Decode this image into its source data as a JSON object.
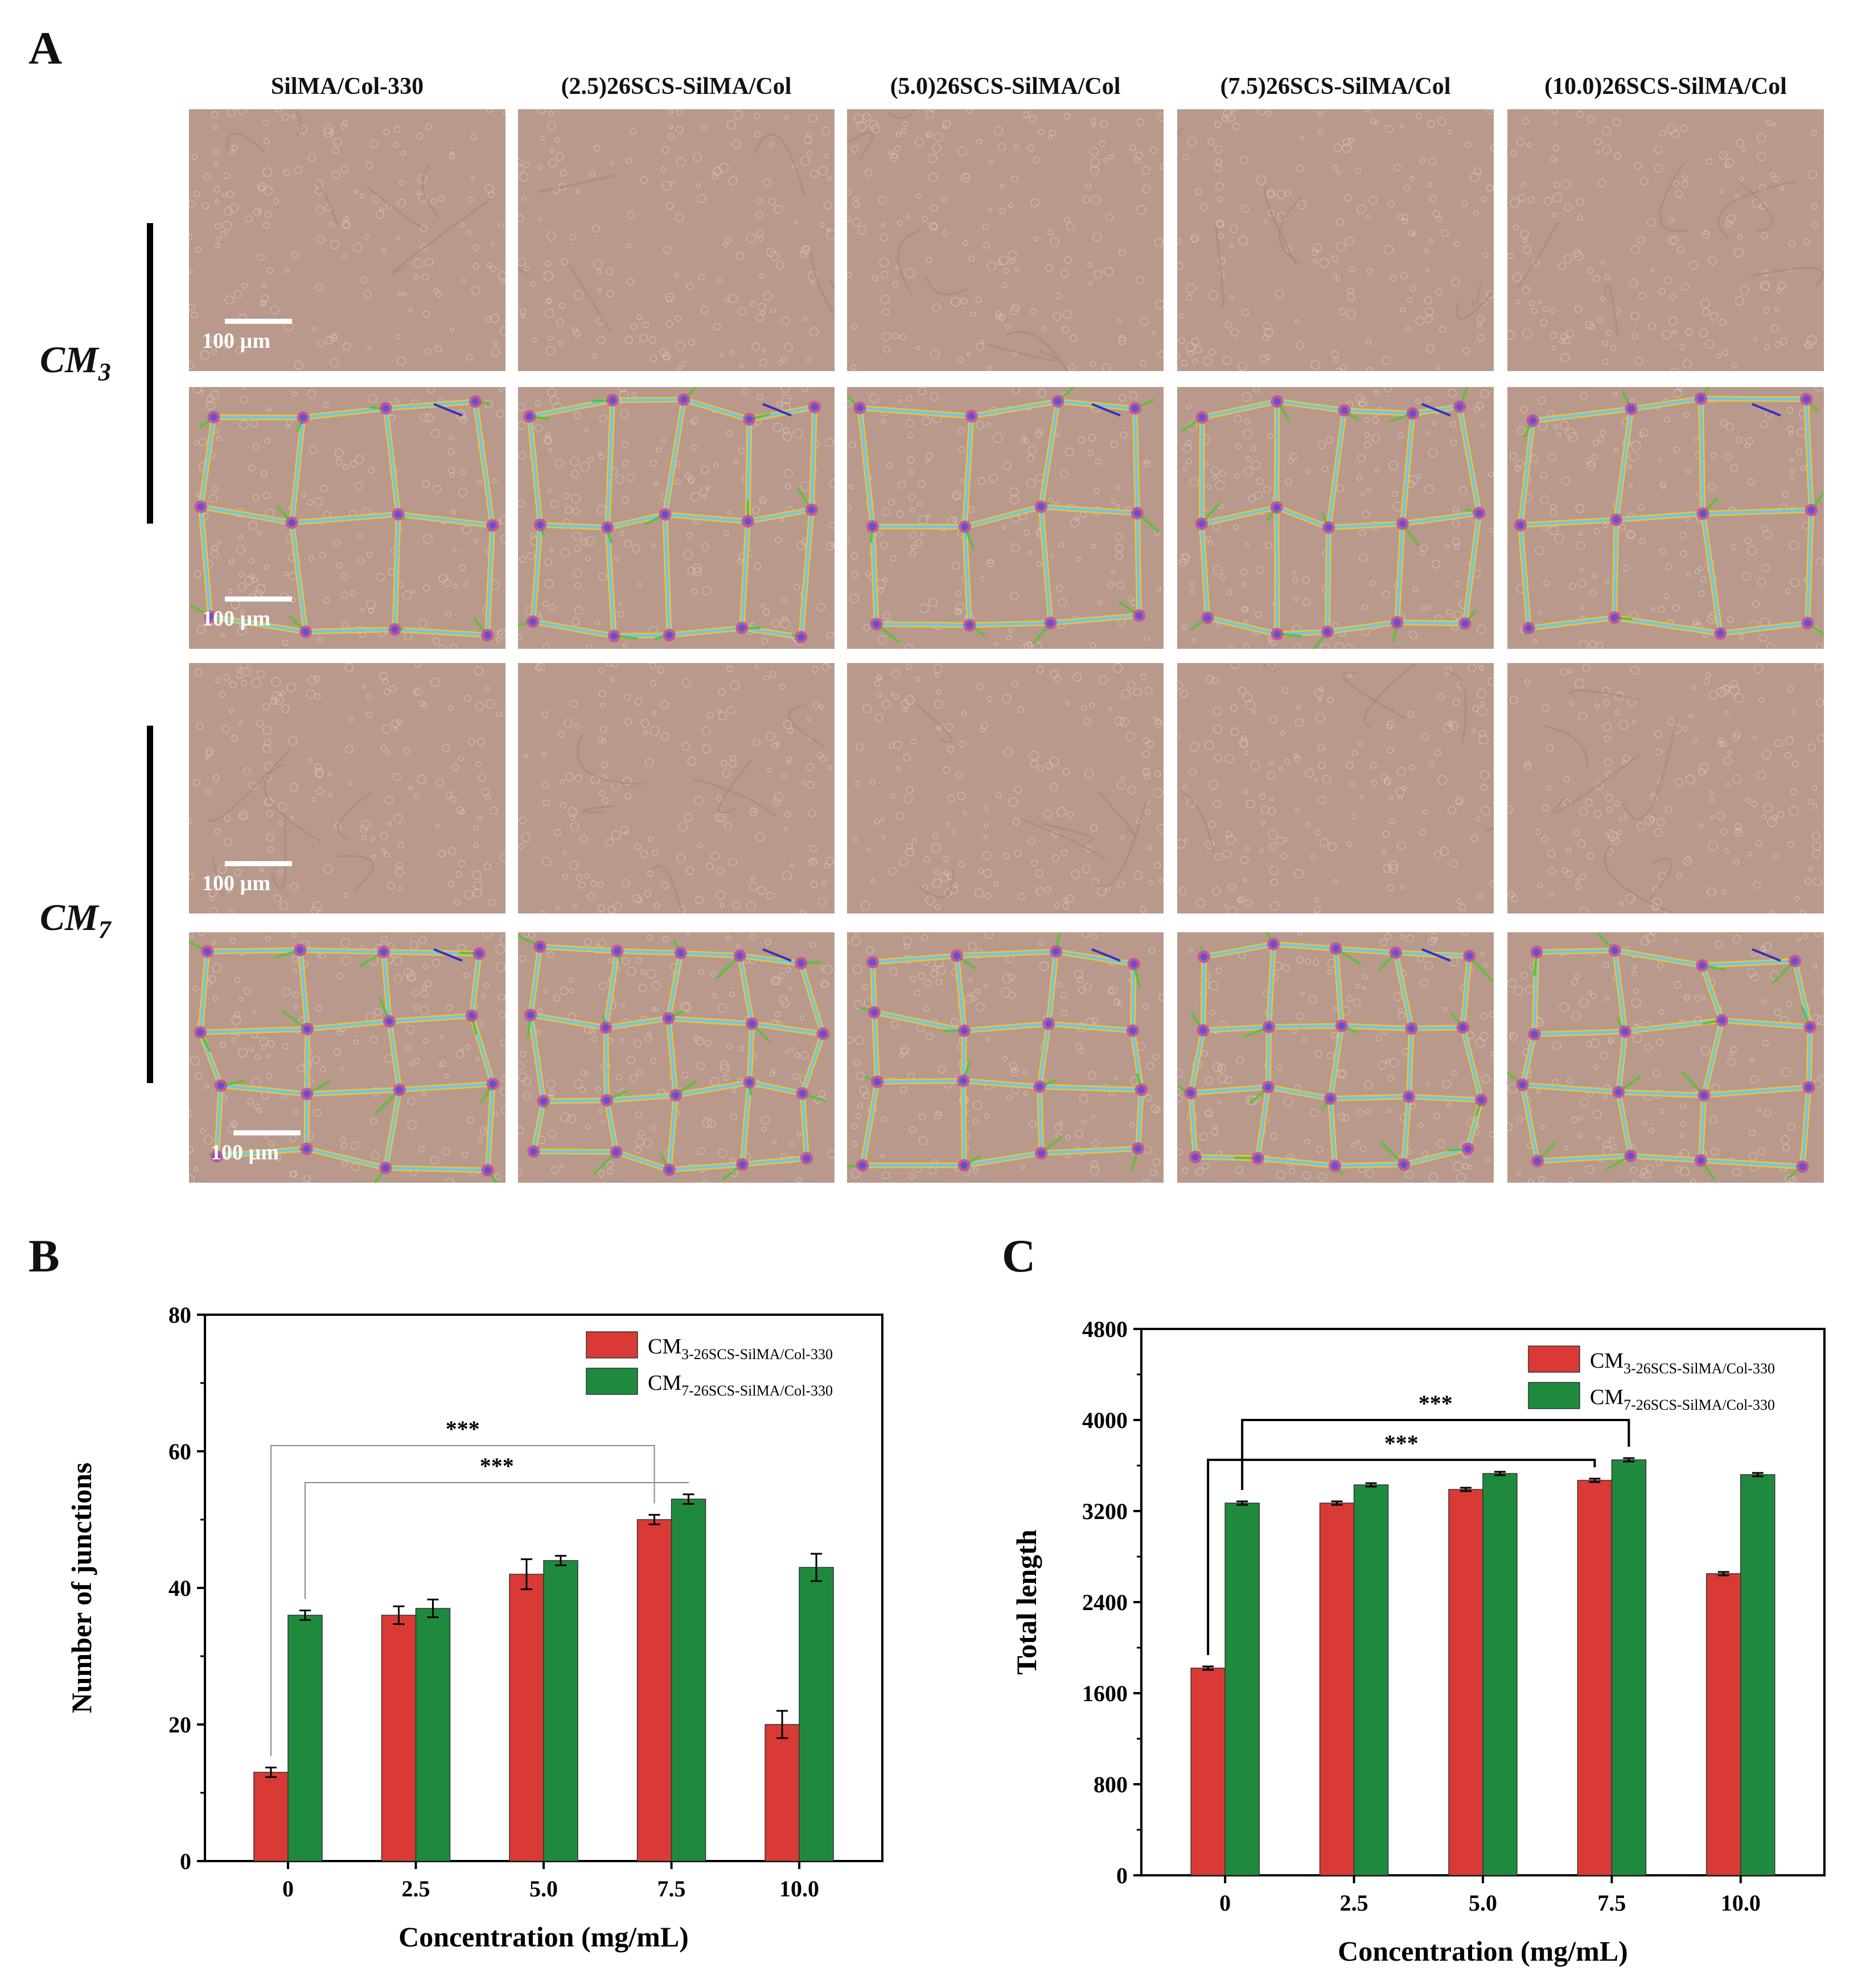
{
  "panels": {
    "a": "A",
    "b": "B",
    "c": "C"
  },
  "micrographs": {
    "columns": [
      "SilMA/Col-330",
      "(2.5)26SCS-SilMA/Col",
      "(5.0)26SCS-SilMA/Col",
      "(7.5)26SCS-SilMA/Col",
      "(10.0)26SCS-SilMA/Col"
    ],
    "rows": [
      {
        "label_main": "CM",
        "label_sub": "3"
      },
      {
        "label_main": "CM",
        "label_sub": "7"
      }
    ],
    "scale_bar_text": "100 µm",
    "colors": {
      "background": "#b8998b",
      "mesh": "#6ec6e8",
      "segment": "#f2c230",
      "branch": "#5fbf3a",
      "junction": "#c04aa0",
      "node": "#6b4fc8",
      "isolated": "#3a2fbf"
    }
  },
  "chart_data": [
    {
      "type": "bar",
      "categories": [
        "0",
        "2.5",
        "5.0",
        "7.5",
        "10.0"
      ],
      "series": [
        {
          "name_main": "CM",
          "name_sub": "3-26SCS-SilMA/Col-330",
          "color": "#d93a35",
          "values": [
            13,
            36,
            42,
            50,
            20
          ],
          "errors": [
            0.7,
            1.3,
            2.2,
            0.7,
            2.0
          ]
        },
        {
          "name_main": "CM",
          "name_sub": "7-26SCS-SilMA/Col-330",
          "color": "#1f8a3e",
          "values": [
            36,
            37,
            44,
            53,
            43
          ],
          "errors": [
            0.7,
            1.3,
            0.7,
            0.7,
            2.0
          ]
        }
      ],
      "xlabel": "Concentration (mg/mL)",
      "ylabel": "Number of junctions",
      "ylim": [
        0,
        80
      ],
      "yticks": [
        "0",
        "20",
        "40",
        "60",
        "80"
      ],
      "legend_position": "top-right",
      "significance": [
        "***",
        "***"
      ]
    },
    {
      "type": "bar",
      "categories": [
        "0",
        "2.5",
        "5.0",
        "7.5",
        "10.0"
      ],
      "series": [
        {
          "name_main": "CM",
          "name_sub": "3-26SCS-SilMA/Col-330",
          "color": "#d93a35",
          "values": [
            1820,
            3270,
            3390,
            3470,
            2650
          ],
          "errors": [
            15,
            15,
            15,
            15,
            15
          ]
        },
        {
          "name_main": "CM",
          "name_sub": "7-26SCS-SilMA/Col-330",
          "color": "#1f8a3e",
          "values": [
            3270,
            3430,
            3530,
            3650,
            3520
          ],
          "errors": [
            15,
            15,
            15,
            15,
            15
          ]
        }
      ],
      "xlabel": "Concentration (mg/mL)",
      "ylabel": "Total length",
      "ylim": [
        0,
        4800
      ],
      "yticks": [
        "0",
        "800",
        "1600",
        "2400",
        "3200",
        "4000",
        "4800"
      ],
      "legend_position": "top-right",
      "significance": [
        "***",
        "***"
      ]
    }
  ]
}
